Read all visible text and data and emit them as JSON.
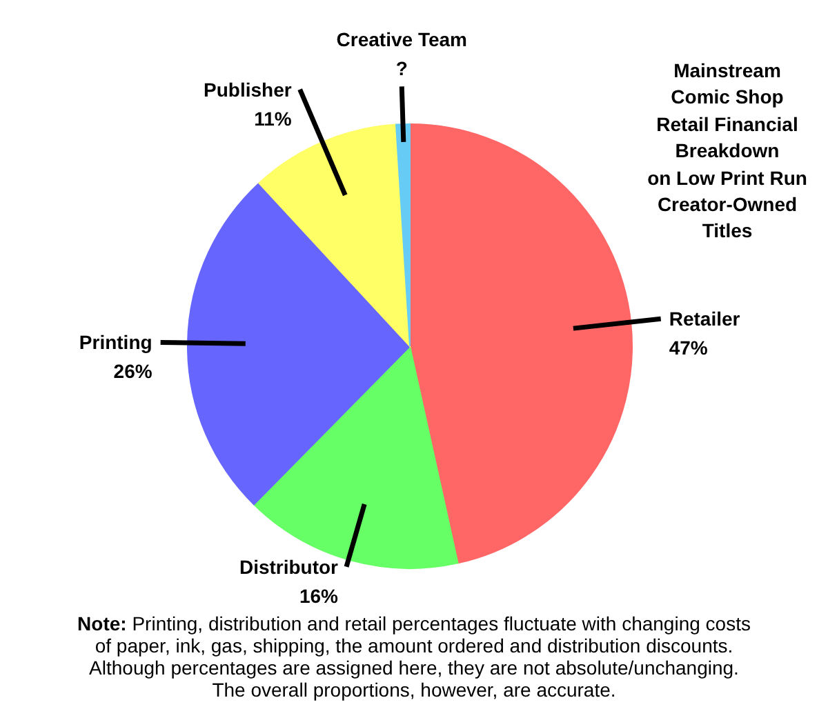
{
  "chart_data": {
    "type": "pie",
    "title": "Mainstream\nComic Shop\nRetail Financial\nBreakdown\non Low Print Run\nCreator-Owned\nTitles",
    "categories": [
      "Retailer",
      "Distributor",
      "Printing",
      "Publisher",
      "Creative Team"
    ],
    "values": [
      47,
      16,
      26,
      11,
      1
    ],
    "value_labels": [
      "47%",
      "16%",
      "26%",
      "11%",
      "?"
    ],
    "colors": [
      "#ff6666",
      "#66ff66",
      "#6666ff",
      "#ffff66",
      "#66ccf5"
    ],
    "annotations": [
      "Note: Printing, distribution and retail percentages fluctuate with changing costs\nof paper, ink, gas, shipping, the amount ordered and distribution discounts.\nAlthough percentages are assigned here, they are not absolute/unchanging.\nThe overall proportions, however, are accurate."
    ]
  }
}
